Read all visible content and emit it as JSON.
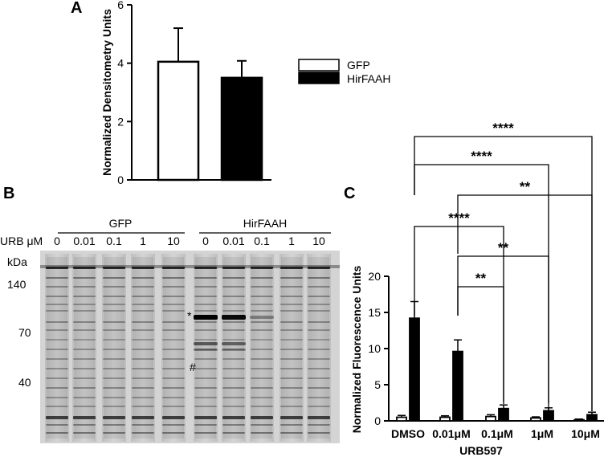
{
  "panel_labels": {
    "a": "A",
    "b": "B",
    "c": "C"
  },
  "chart_data": [
    {
      "type": "bar",
      "categories": [
        "GFP",
        "HirFAAH"
      ],
      "values": [
        4.05,
        3.5
      ],
      "errors": [
        1.15,
        0.58
      ],
      "colors": [
        "#ffffff",
        "#000000"
      ],
      "ylabel": "Normalized Densitometry Units",
      "ylim": [
        0,
        6
      ],
      "yticks": [
        "0",
        "2",
        "4",
        "6"
      ],
      "legend": [
        "GFP",
        "HirFAAH"
      ],
      "legend_position": "right"
    },
    {
      "type": "bar",
      "categories": [
        "DMSO",
        "0.01μM",
        "0.1μM",
        "1μM",
        "10μM"
      ],
      "series": [
        {
          "values": [
            0.5,
            0.5,
            0.6,
            0.4,
            0.15
          ],
          "errors": [
            0.25,
            0.2,
            0.25,
            0.15,
            0.1
          ],
          "color": "#ffffff"
        },
        {
          "values": [
            14.2,
            9.6,
            1.7,
            1.4,
            0.85
          ],
          "errors": [
            2.3,
            1.6,
            0.5,
            0.4,
            0.35
          ],
          "color": "#000000"
        }
      ],
      "xlabel": "URB597",
      "ylabel": "Normalized Fluorescence Units",
      "ylim": [
        0,
        20
      ],
      "yticks": [
        "0",
        "5",
        "10",
        "15",
        "20"
      ],
      "significance": [
        {
          "from": 0,
          "to": 4,
          "label": "****"
        },
        {
          "from": 0,
          "to": 3,
          "label": "****"
        },
        {
          "from": 1,
          "to": 4,
          "label": "**"
        },
        {
          "from": 0,
          "to": 2,
          "label": "****"
        },
        {
          "from": 1,
          "to": 3,
          "label": "**"
        },
        {
          "from": 1,
          "to": 2,
          "label": "**"
        }
      ]
    }
  ],
  "blot": {
    "groups": [
      "GFP",
      "HirFAAH"
    ],
    "row_label": "URB μM",
    "lanes": [
      "0",
      "0.01",
      "0.1",
      "1",
      "10",
      "0",
      "0.01",
      "0.1",
      "1",
      "10"
    ],
    "unit": "kDa",
    "markers": [
      "140",
      "70",
      "40"
    ],
    "annotations": [
      "*",
      "#"
    ]
  }
}
